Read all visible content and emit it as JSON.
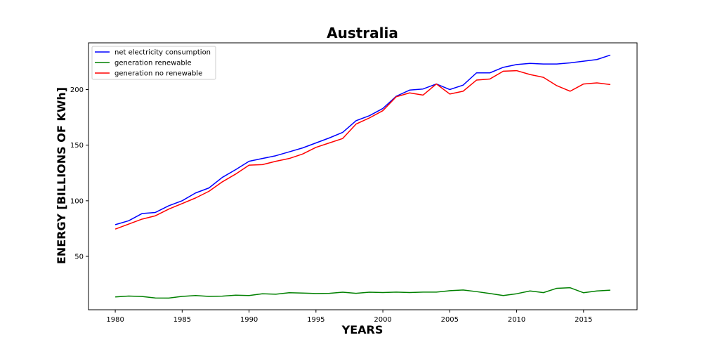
{
  "chart_data": {
    "type": "line",
    "title": "Australia",
    "xlabel": "YEARS",
    "ylabel": "ENERGY [BILLIONS OF KWh]",
    "xlim": [
      1978,
      2019
    ],
    "ylim": [
      2,
      242
    ],
    "xticks": [
      1980,
      1985,
      1990,
      1995,
      2000,
      2005,
      2010,
      2015
    ],
    "yticks": [
      50,
      100,
      150,
      200
    ],
    "grid": false,
    "legend_position": "top-left",
    "x": [
      1980,
      1981,
      1982,
      1983,
      1984,
      1985,
      1986,
      1987,
      1988,
      1989,
      1990,
      1991,
      1992,
      1993,
      1994,
      1995,
      1996,
      1997,
      1998,
      1999,
      2000,
      2001,
      2002,
      2003,
      2004,
      2005,
      2006,
      2007,
      2008,
      2009,
      2010,
      2011,
      2012,
      2013,
      2014,
      2015,
      2016,
      2017
    ],
    "series": [
      {
        "name": "net electricity consumption",
        "color": "#0000ff",
        "values": [
          78.5,
          82,
          88.5,
          89.5,
          95.5,
          100,
          107,
          111.5,
          121,
          128,
          135.5,
          138,
          140.5,
          144,
          147.5,
          152,
          156.5,
          161.5,
          172,
          176.5,
          183,
          194,
          199.5,
          200.5,
          205,
          200,
          204,
          215,
          215,
          220,
          222.5,
          223.5,
          223,
          223,
          224,
          225.5,
          227,
          231
        ]
      },
      {
        "name": "generation renewable",
        "color": "#008000",
        "values": [
          13.5,
          14.3,
          13.9,
          12.6,
          12.5,
          14,
          14.8,
          14,
          14.2,
          15.1,
          14.8,
          16.4,
          16,
          17.3,
          17,
          16.6,
          16.8,
          17.8,
          16.8,
          17.8,
          17.5,
          17.9,
          17.5,
          17.9,
          17.9,
          19.1,
          19.8,
          18.3,
          16.6,
          14.8,
          16.4,
          18.9,
          17.4,
          21.3,
          21.8,
          17.3,
          18.9,
          19.6
        ]
      },
      {
        "name": "generation no renewable",
        "color": "#ff0000",
        "values": [
          74.5,
          79,
          83.5,
          86.5,
          92.5,
          97.5,
          102.5,
          108.5,
          117,
          124,
          132,
          132.5,
          135.5,
          138,
          142,
          148,
          152,
          156,
          169,
          174.5,
          181,
          193.5,
          197,
          195,
          205,
          196,
          198.5,
          208.5,
          209.5,
          216.5,
          217,
          213.5,
          211,
          203.5,
          198.5,
          205,
          206,
          204.5
        ]
      }
    ]
  }
}
